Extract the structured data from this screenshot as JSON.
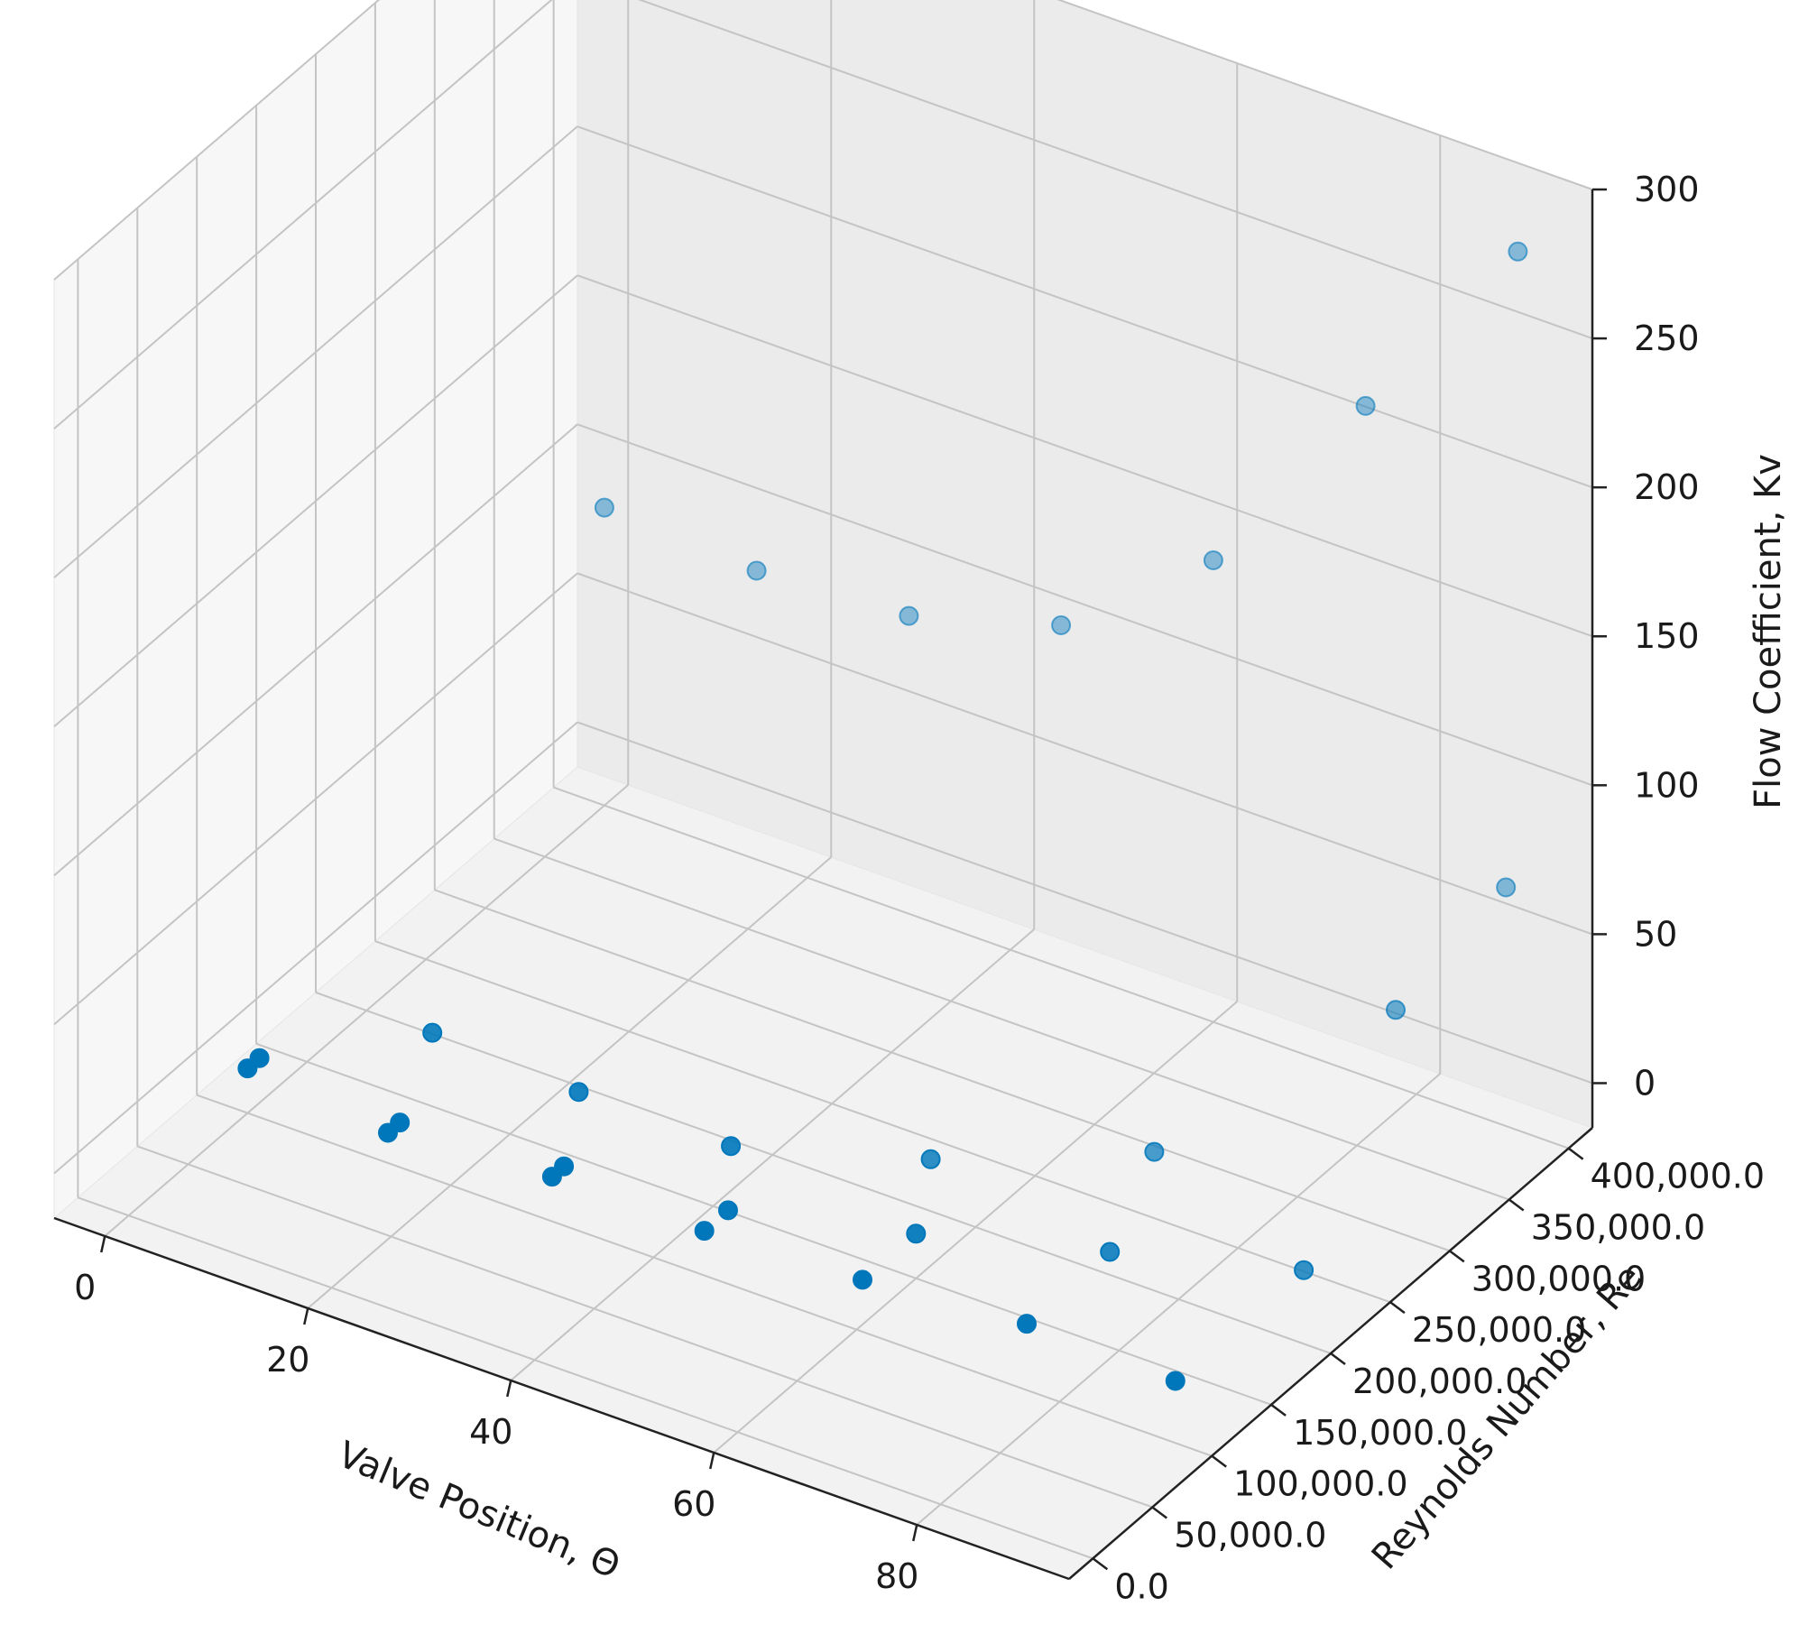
{
  "chart_data": {
    "type": "scatter",
    "projection": "3d",
    "title": "",
    "xlabel": "Valve Position, Θ",
    "ylabel": "Reynolds Number, Re",
    "zlabel": "Flow Coefficient, Kv",
    "x_ticks": [
      "0",
      "20",
      "40",
      "60",
      "80"
    ],
    "y_ticks": [
      "0.0",
      "50,000.0",
      "100,000.0",
      "150,000.0",
      "200,000.0",
      "250,000.0",
      "300,000.0",
      "350,000.0",
      "400,000.0"
    ],
    "z_ticks": [
      "0",
      "50",
      "100",
      "150",
      "200",
      "250",
      "300"
    ],
    "xlim": [
      -5,
      95
    ],
    "ylim": [
      -20000,
      420000
    ],
    "zlim": [
      -15,
      300
    ],
    "grid": true,
    "marker_color": "#0077bb",
    "points": [
      {
        "x": 0,
        "y": 100000,
        "z": 0
      },
      {
        "x": 0,
        "y": 110000,
        "z": 0
      },
      {
        "x": 15,
        "y": 90000,
        "z": 0
      },
      {
        "x": 15,
        "y": 100000,
        "z": 0
      },
      {
        "x": 30,
        "y": 100000,
        "z": 0
      },
      {
        "x": 30,
        "y": 110000,
        "z": 0
      },
      {
        "x": 45,
        "y": 100000,
        "z": 0
      },
      {
        "x": 45,
        "y": 120000,
        "z": 0
      },
      {
        "x": 60,
        "y": 105000,
        "z": 0
      },
      {
        "x": 60,
        "y": 150000,
        "z": 0
      },
      {
        "x": 75,
        "y": 115000,
        "z": 0
      },
      {
        "x": 75,
        "y": 185000,
        "z": 0
      },
      {
        "x": 90,
        "y": 112000,
        "z": 0
      },
      {
        "x": 90,
        "y": 220000,
        "z": 0
      },
      {
        "x": 10,
        "y": 170000,
        "z": 0
      },
      {
        "x": 25,
        "y": 165000,
        "z": 0
      },
      {
        "x": 40,
        "y": 165000,
        "z": 0
      },
      {
        "x": 55,
        "y": 205000,
        "z": 0
      },
      {
        "x": 70,
        "y": 265000,
        "z": 0
      },
      {
        "x": 85,
        "y": 340000,
        "z": 40
      },
      {
        "x": 90,
        "y": 390000,
        "z": 70
      },
      {
        "x": 0,
        "y": 400000,
        "z": 85
      },
      {
        "x": 15,
        "y": 400000,
        "z": 82
      },
      {
        "x": 30,
        "y": 400000,
        "z": 85
      },
      {
        "x": 45,
        "y": 400000,
        "z": 100
      },
      {
        "x": 60,
        "y": 400000,
        "z": 140
      },
      {
        "x": 75,
        "y": 400000,
        "z": 210
      },
      {
        "x": 90,
        "y": 400000,
        "z": 280
      }
    ]
  }
}
